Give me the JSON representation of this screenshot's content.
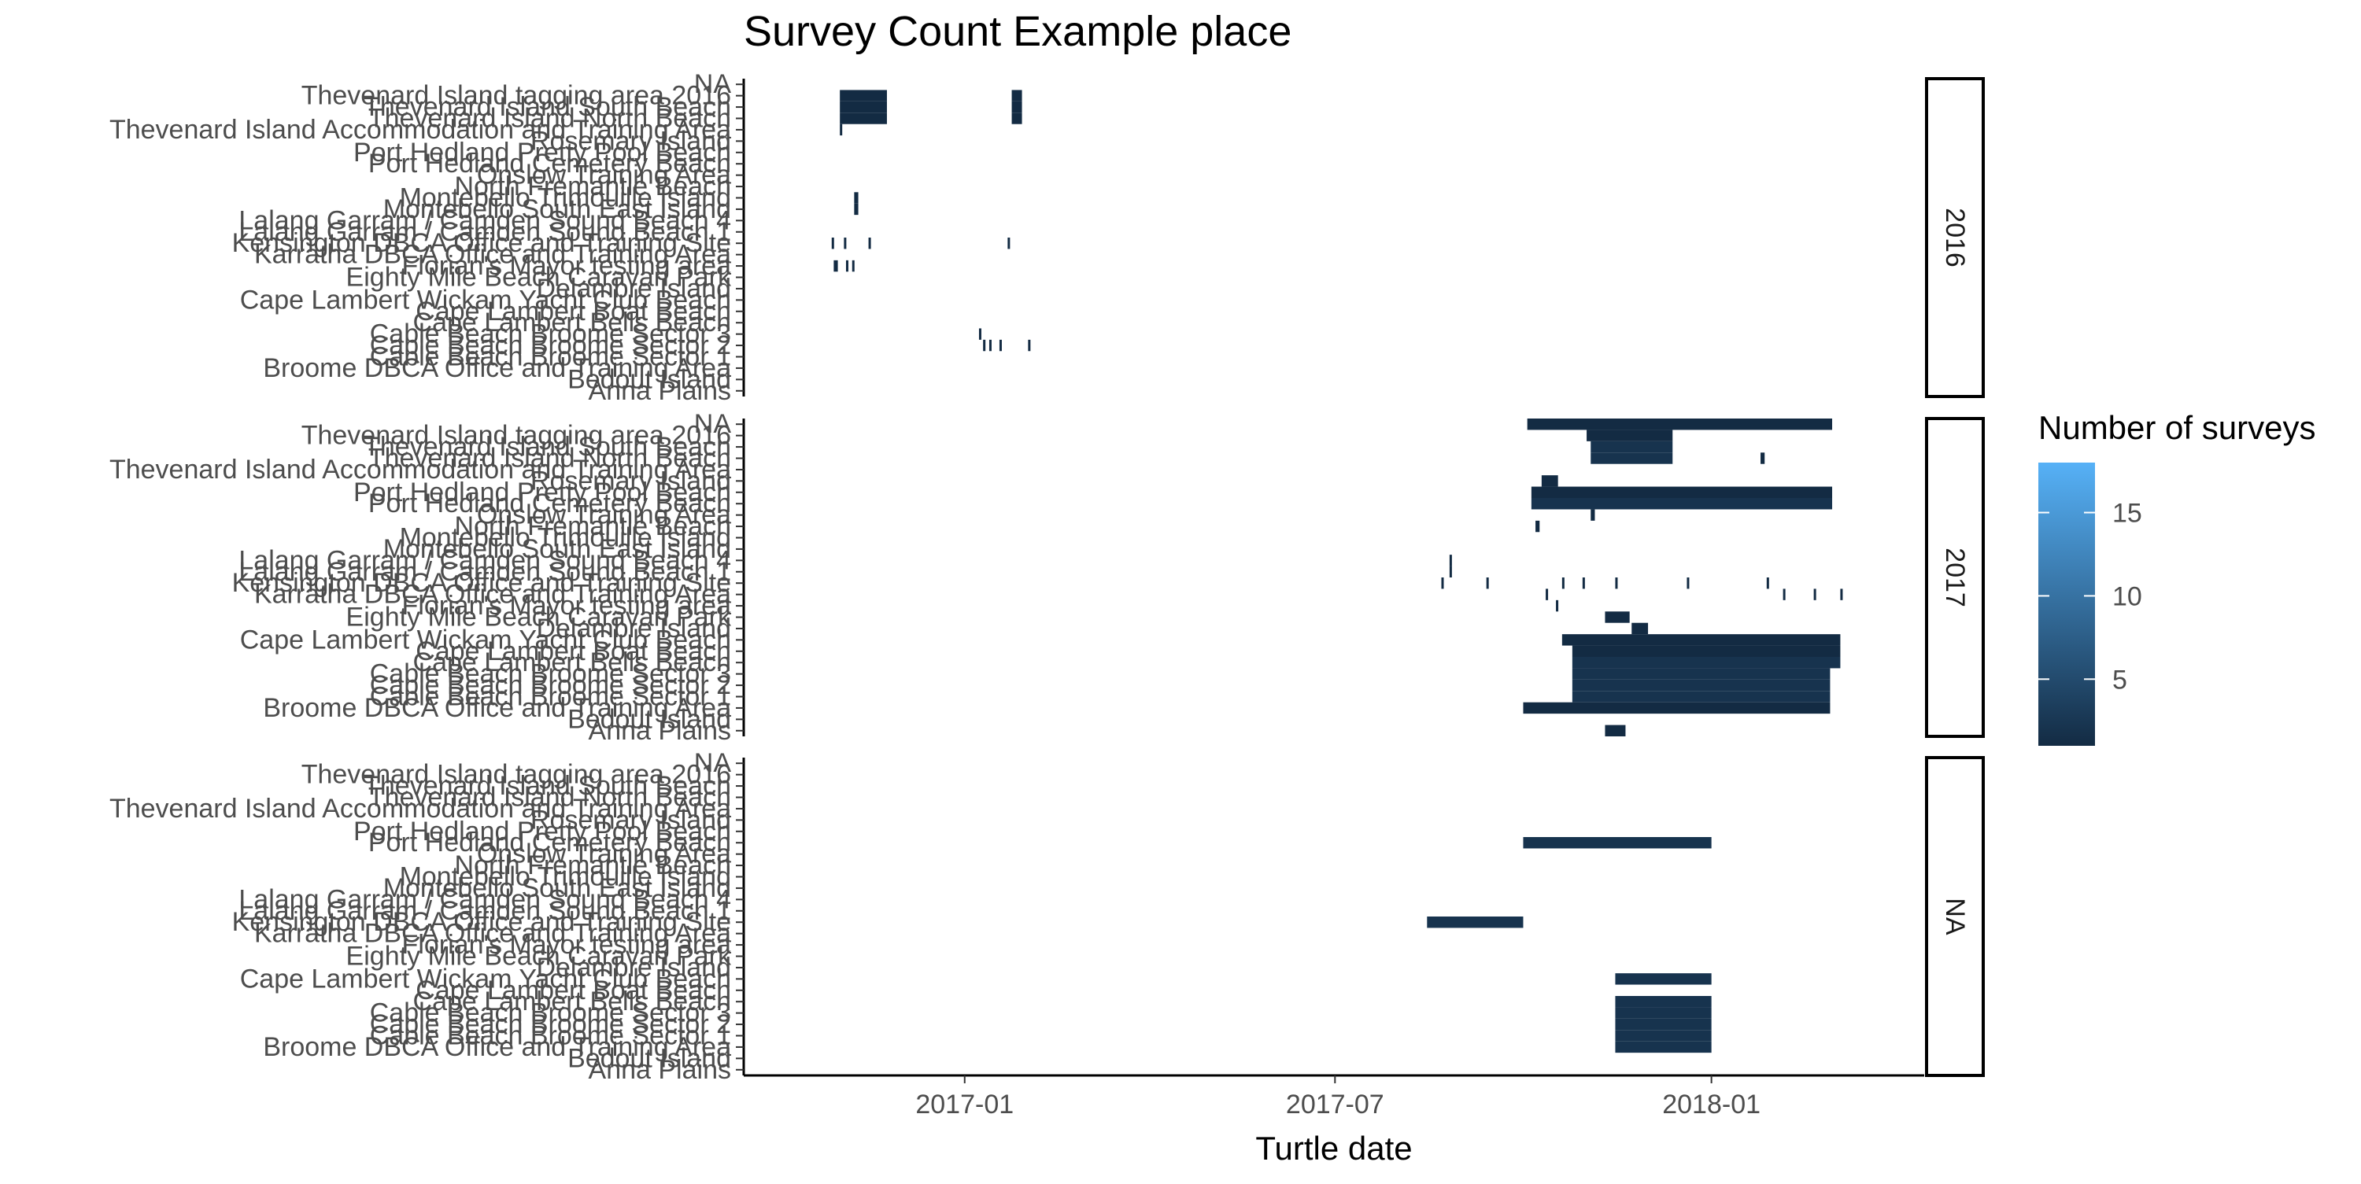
{
  "chart_data": {
    "type": "heatmap",
    "title": "Survey Count Example place",
    "xlabel": "Turtle date",
    "ylabel": "",
    "x_range": [
      "2016-09-15",
      "2018-04-15"
    ],
    "x_ticks": [
      "2017-01",
      "2017-07",
      "2018-01"
    ],
    "grid": false,
    "legend_position": "right",
    "legend": {
      "title": "Number of surveys",
      "min": 1,
      "max": 18,
      "ticks": [
        5,
        10,
        15
      ],
      "color_low": "#132B43",
      "color_high": "#56B1F7"
    },
    "sites": [
      "NA",
      "Thevenard Island tagging area 2016",
      "Thevenard Island South Beach",
      "Thevenard Island North Beach",
      "Thevenard Island Accommodation and Training Area",
      "Rosemary Island",
      "Port Hedland Pretty Pool Beach",
      "Port Hedland Cemetery Beach",
      "Onslow Training Area",
      "North Fremantle Beach",
      "Montebello Trimouille Island",
      "Montebello South East Island",
      "Lalang Garram / Camden Sound Beach 4",
      "Lalang Garram / Camden Sound Beach 1",
      "Kensington DBCA Office and Training Site",
      "Karratha DBCA Office and Training Area",
      "Florian's Mayor testing area",
      "Eighty Mile Beach Caravan Park",
      "Delambre Island",
      "Cape Lambert Wickam Yacht Club Beach",
      "Cape Lambert Boat Beach",
      "Cape Lambert Bells Beach",
      "Cable Beach Broome Sector 3",
      "Cable Beach Broome Sector 2",
      "Cable Beach Broome Sector 1",
      "Broome DBCA Office and Training Area",
      "Bedout Island",
      "Anna Plains"
    ],
    "facets": [
      {
        "label": "2016",
        "cells": [
          {
            "site": "Thevenard Island tagging area 2016",
            "start": "2016-11-01",
            "end": "2016-11-24",
            "value": 1
          },
          {
            "site": "Thevenard Island South Beach",
            "start": "2016-11-01",
            "end": "2016-11-24",
            "value": 1
          },
          {
            "site": "Thevenard Island North Beach",
            "start": "2016-11-01",
            "end": "2016-11-24",
            "value": 1
          },
          {
            "site": "Thevenard Island tagging area 2016",
            "start": "2017-01-24",
            "end": "2017-01-29",
            "value": 1
          },
          {
            "site": "Thevenard Island South Beach",
            "start": "2017-01-24",
            "end": "2017-01-29",
            "value": 1
          },
          {
            "site": "Thevenard Island North Beach",
            "start": "2017-01-24",
            "end": "2017-01-29",
            "value": 1
          },
          {
            "site": "Thevenard Island Accommodation and Training Area",
            "start": "2016-11-01",
            "end": "2016-11-02",
            "value": 1
          },
          {
            "site": "Montebello Trimouille Island",
            "start": "2016-11-08",
            "end": "2016-11-10",
            "value": 1
          },
          {
            "site": "Montebello South East Island",
            "start": "2016-11-08",
            "end": "2016-11-10",
            "value": 1
          },
          {
            "site": "Kensington DBCA Office and Training Site",
            "start": "2016-10-28",
            "end": "2016-10-29",
            "value": 1
          },
          {
            "site": "Kensington DBCA Office and Training Site",
            "start": "2016-11-03",
            "end": "2016-11-04",
            "value": 1
          },
          {
            "site": "Kensington DBCA Office and Training Site",
            "start": "2016-11-15",
            "end": "2016-11-16",
            "value": 1
          },
          {
            "site": "Kensington DBCA Office and Training Site",
            "start": "2017-01-22",
            "end": "2017-01-23",
            "value": 1
          },
          {
            "site": "Florian's Mayor testing area",
            "start": "2016-10-29",
            "end": "2016-10-31",
            "value": 1
          },
          {
            "site": "Florian's Mayor testing area",
            "start": "2016-11-04",
            "end": "2016-11-05",
            "value": 1
          },
          {
            "site": "Florian's Mayor testing area",
            "start": "2016-11-07",
            "end": "2016-11-08",
            "value": 1
          },
          {
            "site": "Cable Beach Broome Sector 3",
            "start": "2017-01-08",
            "end": "2017-01-09",
            "value": 1
          },
          {
            "site": "Cable Beach Broome Sector 2",
            "start": "2017-01-10",
            "end": "2017-01-11",
            "value": 1
          },
          {
            "site": "Cable Beach Broome Sector 2",
            "start": "2017-01-13",
            "end": "2017-01-14",
            "value": 1
          },
          {
            "site": "Cable Beach Broome Sector 2",
            "start": "2017-01-18",
            "end": "2017-01-19",
            "value": 1
          },
          {
            "site": "Cable Beach Broome Sector 2",
            "start": "2017-02-01",
            "end": "2017-02-02",
            "value": 1
          }
        ]
      },
      {
        "label": "2017",
        "cells": [
          {
            "site": "NA",
            "start": "2017-10-03",
            "end": "2018-03-01",
            "value": 1
          },
          {
            "site": "Thevenard Island tagging area 2016",
            "start": "2017-11-01",
            "end": "2017-12-13",
            "value": 1
          },
          {
            "site": "Thevenard Island South Beach",
            "start": "2017-11-03",
            "end": "2017-12-13",
            "value": 2
          },
          {
            "site": "Thevenard Island North Beach",
            "start": "2017-11-03",
            "end": "2017-12-13",
            "value": 2
          },
          {
            "site": "Thevenard Island North Beach",
            "start": "2018-01-25",
            "end": "2018-01-27",
            "value": 1
          },
          {
            "site": "Rosemary Island",
            "start": "2017-10-10",
            "end": "2017-10-18",
            "value": 1
          },
          {
            "site": "Port Hedland Pretty Pool Beach",
            "start": "2017-10-05",
            "end": "2018-03-01",
            "value": 1
          },
          {
            "site": "Port Hedland Cemetery Beach",
            "start": "2017-10-05",
            "end": "2018-03-01",
            "value": 2
          },
          {
            "site": "Onslow Training Area",
            "start": "2017-11-03",
            "end": "2017-11-05",
            "value": 1
          },
          {
            "site": "North Fremantle Beach",
            "start": "2017-10-07",
            "end": "2017-10-09",
            "value": 1
          },
          {
            "site": "Lalang Garram / Camden Sound Beach 4",
            "start": "2017-08-26",
            "end": "2017-08-27",
            "value": 1
          },
          {
            "site": "Lalang Garram / Camden Sound Beach 1",
            "start": "2017-08-26",
            "end": "2017-08-27",
            "value": 1
          },
          {
            "site": "Kensington DBCA Office and Training Site",
            "start": "2017-08-22",
            "end": "2017-08-23",
            "value": 1
          },
          {
            "site": "Kensington DBCA Office and Training Site",
            "start": "2017-09-13",
            "end": "2017-09-14",
            "value": 1
          },
          {
            "site": "Kensington DBCA Office and Training Site",
            "start": "2017-10-20",
            "end": "2017-10-21",
            "value": 1
          },
          {
            "site": "Kensington DBCA Office and Training Site",
            "start": "2017-10-30",
            "end": "2017-10-31",
            "value": 1
          },
          {
            "site": "Kensington DBCA Office and Training Site",
            "start": "2017-11-15",
            "end": "2017-11-16",
            "value": 1
          },
          {
            "site": "Kensington DBCA Office and Training Site",
            "start": "2017-12-20",
            "end": "2017-12-21",
            "value": 1
          },
          {
            "site": "Kensington DBCA Office and Training Site",
            "start": "2018-01-28",
            "end": "2018-01-29",
            "value": 1
          },
          {
            "site": "Karratha DBCA Office and Training Area",
            "start": "2017-10-12",
            "end": "2017-10-13",
            "value": 1
          },
          {
            "site": "Karratha DBCA Office and Training Area",
            "start": "2018-02-05",
            "end": "2018-02-06",
            "value": 1
          },
          {
            "site": "Karratha DBCA Office and Training Area",
            "start": "2018-02-20",
            "end": "2018-02-21",
            "value": 1
          },
          {
            "site": "Karratha DBCA Office and Training Area",
            "start": "2018-03-05",
            "end": "2018-03-06",
            "value": 1
          },
          {
            "site": "Florian's Mayor testing area",
            "start": "2017-10-17",
            "end": "2017-10-18",
            "value": 1
          },
          {
            "site": "Eighty Mile Beach Caravan Park",
            "start": "2017-11-10",
            "end": "2017-11-22",
            "value": 1
          },
          {
            "site": "Delambre Island",
            "start": "2017-11-23",
            "end": "2017-12-01",
            "value": 1
          },
          {
            "site": "Cape Lambert Wickam Yacht Club Beach",
            "start": "2017-10-20",
            "end": "2018-03-05",
            "value": 1
          },
          {
            "site": "Cape Lambert Boat Beach",
            "start": "2017-10-25",
            "end": "2018-03-05",
            "value": 1
          },
          {
            "site": "Cape Lambert Bells Beach",
            "start": "2017-10-25",
            "end": "2018-03-05",
            "value": 2
          },
          {
            "site": "Cable Beach Broome Sector 3",
            "start": "2017-10-25",
            "end": "2018-02-28",
            "value": 2
          },
          {
            "site": "Cable Beach Broome Sector 2",
            "start": "2017-10-25",
            "end": "2018-02-28",
            "value": 2
          },
          {
            "site": "Cable Beach Broome Sector 1",
            "start": "2017-10-25",
            "end": "2018-02-28",
            "value": 2
          },
          {
            "site": "Broome DBCA Office and Training Area",
            "start": "2017-10-01",
            "end": "2018-02-28",
            "value": 1
          },
          {
            "site": "Anna Plains",
            "start": "2017-11-10",
            "end": "2017-11-20",
            "value": 1
          }
        ]
      },
      {
        "label": "NA",
        "cells": [
          {
            "site": "Port Hedland Cemetery Beach",
            "start": "2017-10-01",
            "end": "2018-01-01",
            "value": 2
          },
          {
            "site": "Kensington DBCA Office and Training Site",
            "start": "2017-08-15",
            "end": "2017-10-01",
            "value": 2
          },
          {
            "site": "Cape Lambert Wickam Yacht Club Beach",
            "start": "2017-11-15",
            "end": "2018-01-01",
            "value": 2
          },
          {
            "site": "Cape Lambert Bells Beach",
            "start": "2017-11-15",
            "end": "2018-01-01",
            "value": 2
          },
          {
            "site": "Cable Beach Broome Sector 3",
            "start": "2017-11-15",
            "end": "2018-01-01",
            "value": 2
          },
          {
            "site": "Cable Beach Broome Sector 2",
            "start": "2017-11-15",
            "end": "2018-01-01",
            "value": 2
          },
          {
            "site": "Cable Beach Broome Sector 1",
            "start": "2017-11-15",
            "end": "2018-01-01",
            "value": 2
          },
          {
            "site": "Broome DBCA Office and Training Area",
            "start": "2017-11-15",
            "end": "2018-01-01",
            "value": 2
          }
        ]
      }
    ]
  }
}
